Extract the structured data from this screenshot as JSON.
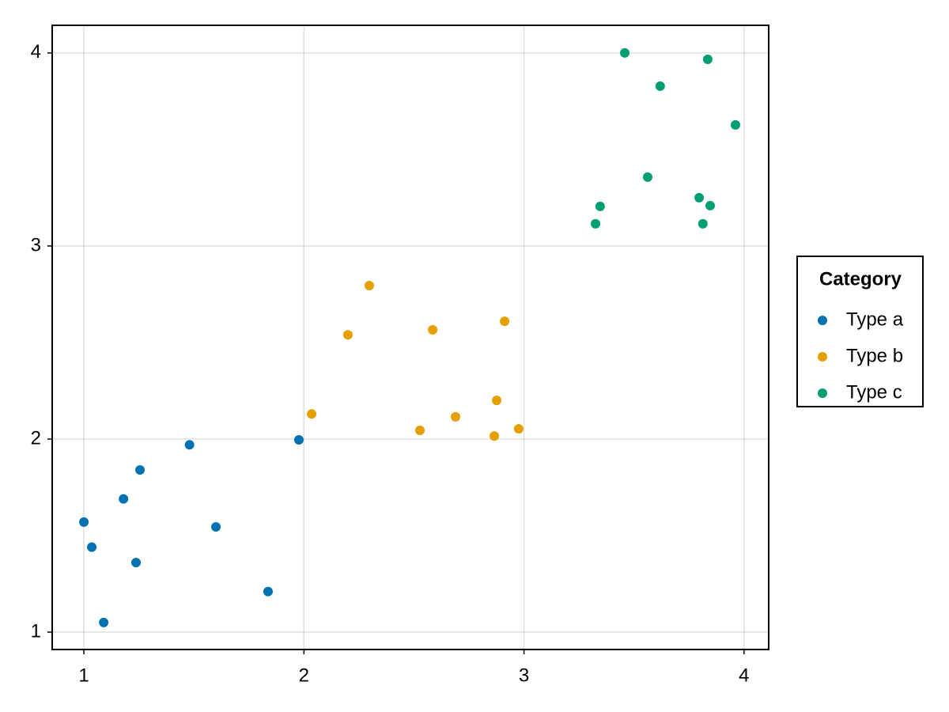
{
  "chart_data": {
    "type": "scatter",
    "legend_title": "Category",
    "legend_position": "right",
    "grid": true,
    "xlim": [
      0.856,
      4.112
    ],
    "ylim": [
      0.91,
      4.143
    ],
    "xticks": [
      1,
      2,
      3,
      4
    ],
    "yticks": [
      1,
      2,
      3,
      4
    ],
    "series": [
      {
        "name": "Type a",
        "color": "#0072b2",
        "x": [
          1.0,
          1.036,
          1.09,
          1.18,
          1.237,
          1.255,
          1.48,
          1.6,
          1.837,
          1.977
        ],
        "values": [
          1.57,
          1.44,
          1.05,
          1.69,
          1.36,
          1.84,
          1.97,
          1.545,
          1.21,
          1.996
        ]
      },
      {
        "name": "Type b",
        "color": "#e69f00",
        "x": [
          2.035,
          2.2,
          2.297,
          2.527,
          2.585,
          2.689,
          2.865,
          2.876,
          2.912,
          2.976
        ],
        "values": [
          2.13,
          2.54,
          2.795,
          2.045,
          2.566,
          2.115,
          2.016,
          2.2,
          2.61,
          2.053
        ]
      },
      {
        "name": "Type c",
        "color": "#009e73",
        "x": [
          3.325,
          3.346,
          3.458,
          3.562,
          3.619,
          3.796,
          3.813,
          3.835,
          3.846,
          3.961
        ],
        "values": [
          3.115,
          3.205,
          4.0,
          3.357,
          3.828,
          3.25,
          3.115,
          3.967,
          3.209,
          3.627
        ]
      }
    ]
  }
}
